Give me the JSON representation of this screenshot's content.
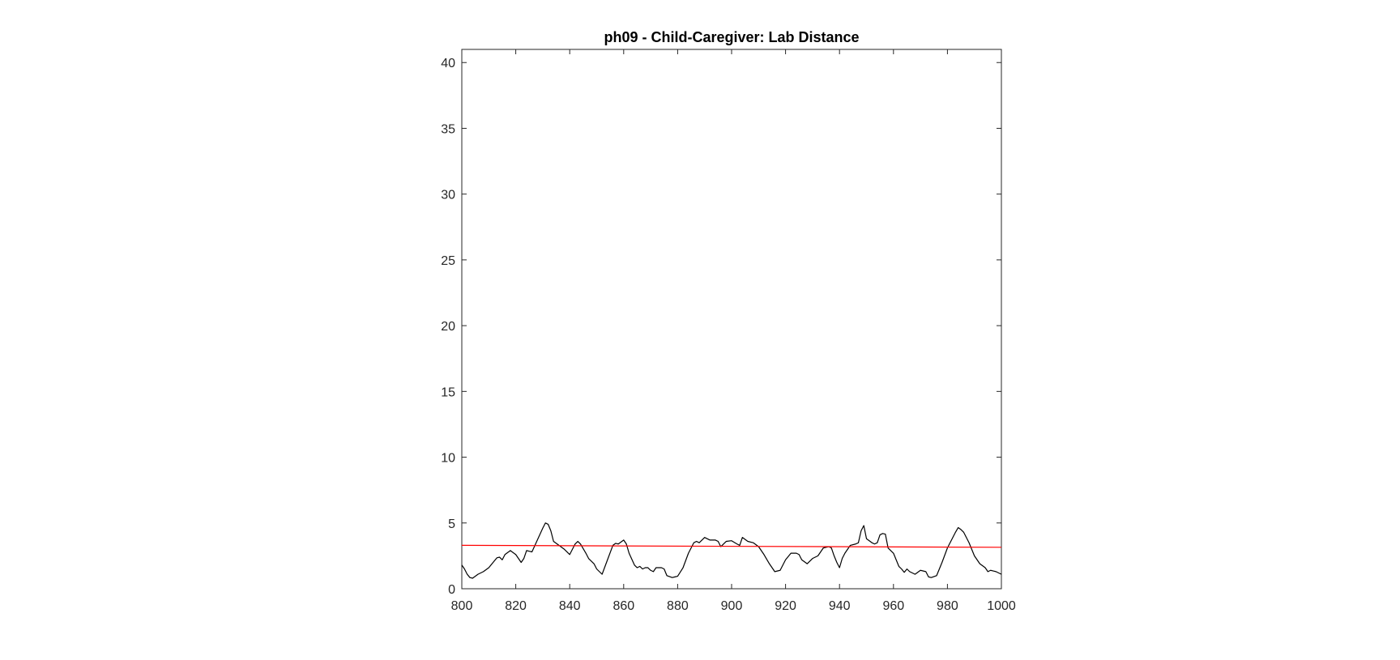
{
  "chart_data": {
    "type": "line",
    "title": "ph09 - Child-Caregiver: Lab Distance",
    "xlabel": "",
    "ylabel": "",
    "xlim": [
      800,
      1000
    ],
    "ylim": [
      0,
      41
    ],
    "xticks": [
      800,
      820,
      840,
      860,
      880,
      900,
      920,
      940,
      960,
      980,
      1000
    ],
    "yticks": [
      0,
      5,
      10,
      15,
      20,
      25,
      30,
      35,
      40
    ],
    "grid": false,
    "legend": "none",
    "series": [
      {
        "color": "#000000",
        "x": [
          800,
          801,
          802,
          803,
          804,
          806,
          808,
          810,
          812,
          813,
          814,
          815,
          816,
          818,
          820,
          822,
          823,
          824,
          825,
          826,
          828,
          830,
          831,
          832,
          833,
          834,
          836,
          838,
          839,
          840,
          842,
          843,
          844,
          846,
          847,
          848,
          849,
          850,
          852,
          854,
          856,
          857,
          858,
          860,
          861,
          862,
          864,
          865,
          866,
          867,
          868,
          869,
          870,
          871,
          872,
          874,
          875,
          876,
          878,
          879,
          880,
          882,
          884,
          886,
          887,
          888,
          890,
          892,
          893,
          894,
          895,
          896,
          898,
          900,
          902,
          903,
          904,
          906,
          908,
          910,
          912,
          914,
          916,
          918,
          919,
          920,
          922,
          924,
          925,
          926,
          928,
          930,
          932,
          933,
          934,
          936,
          937,
          938,
          939,
          940,
          941,
          942,
          944,
          946,
          947,
          948,
          949,
          950,
          952,
          953,
          954,
          955,
          956,
          957,
          958,
          960,
          962,
          963,
          964,
          965,
          966,
          968,
          970,
          972,
          973,
          974,
          976,
          978,
          980,
          982,
          983,
          984,
          985,
          986,
          988,
          990,
          992,
          994,
          995,
          996,
          997,
          998,
          1000
        ],
        "y": [
          1.8,
          1.5,
          1.1,
          0.85,
          0.8,
          1.1,
          1.3,
          1.6,
          2.1,
          2.35,
          2.4,
          2.2,
          2.6,
          2.9,
          2.6,
          2.0,
          2.3,
          2.9,
          2.85,
          2.8,
          3.7,
          4.6,
          5.0,
          4.9,
          4.4,
          3.6,
          3.3,
          3.0,
          2.8,
          2.6,
          3.4,
          3.6,
          3.4,
          2.7,
          2.3,
          2.1,
          1.9,
          1.5,
          1.1,
          2.2,
          3.3,
          3.45,
          3.4,
          3.7,
          3.4,
          2.7,
          1.8,
          1.6,
          1.7,
          1.5,
          1.6,
          1.6,
          1.4,
          1.3,
          1.6,
          1.6,
          1.5,
          1.0,
          0.85,
          0.9,
          0.95,
          1.6,
          2.7,
          3.5,
          3.6,
          3.5,
          3.9,
          3.7,
          3.7,
          3.7,
          3.6,
          3.2,
          3.6,
          3.65,
          3.4,
          3.3,
          3.9,
          3.6,
          3.5,
          3.2,
          2.6,
          1.9,
          1.3,
          1.4,
          1.8,
          2.2,
          2.7,
          2.7,
          2.6,
          2.2,
          1.9,
          2.3,
          2.5,
          2.8,
          3.1,
          3.2,
          3.1,
          2.5,
          2.0,
          1.6,
          2.3,
          2.7,
          3.3,
          3.4,
          3.5,
          4.4,
          4.8,
          3.8,
          3.5,
          3.4,
          3.5,
          4.1,
          4.2,
          4.15,
          3.1,
          2.7,
          1.7,
          1.5,
          1.25,
          1.5,
          1.3,
          1.1,
          1.4,
          1.3,
          0.9,
          0.85,
          1.0,
          2.0,
          3.1,
          3.9,
          4.3,
          4.65,
          4.5,
          4.3,
          3.5,
          2.5,
          1.9,
          1.6,
          1.3,
          1.4,
          1.35,
          1.3,
          1.1
        ]
      },
      {
        "color": "#ff0000",
        "x": [
          800,
          1000
        ],
        "y": [
          3.3,
          3.15
        ]
      }
    ]
  }
}
